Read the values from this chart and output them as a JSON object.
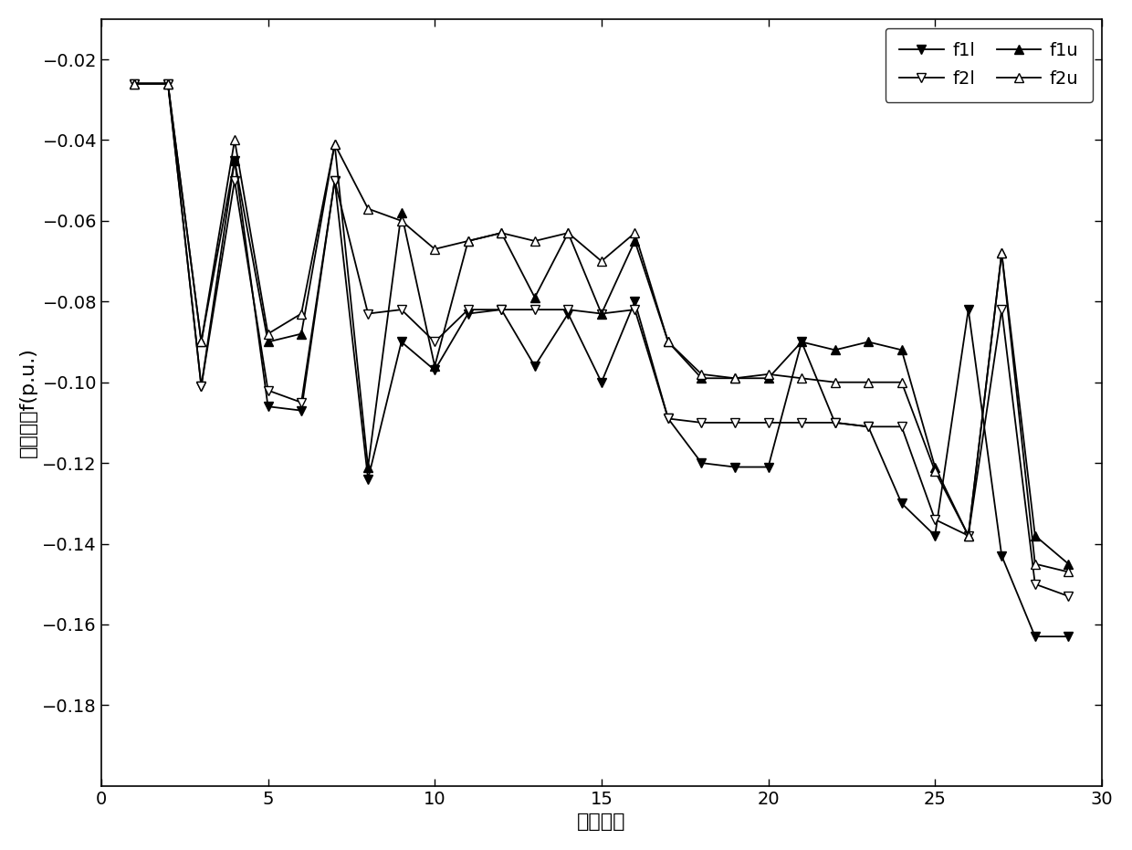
{
  "x": [
    1,
    2,
    3,
    4,
    5,
    6,
    7,
    8,
    9,
    10,
    11,
    12,
    13,
    14,
    15,
    16,
    17,
    18,
    19,
    20,
    21,
    22,
    23,
    24,
    25,
    26,
    27,
    28,
    29
  ],
  "f1l": [
    -0.026,
    -0.026,
    -0.101,
    -0.045,
    -0.106,
    -0.107,
    -0.05,
    -0.124,
    -0.09,
    -0.097,
    -0.083,
    -0.082,
    -0.096,
    -0.083,
    -0.1,
    -0.08,
    -0.109,
    -0.12,
    -0.121,
    -0.121,
    -0.09,
    -0.11,
    -0.111,
    -0.13,
    -0.138,
    -0.082,
    -0.143,
    -0.163,
    -0.163
  ],
  "f2l": [
    -0.026,
    -0.026,
    -0.101,
    -0.05,
    -0.102,
    -0.105,
    -0.05,
    -0.083,
    -0.082,
    -0.09,
    -0.082,
    -0.082,
    -0.082,
    -0.082,
    -0.083,
    -0.082,
    -0.109,
    -0.11,
    -0.11,
    -0.11,
    -0.11,
    -0.11,
    -0.111,
    -0.111,
    -0.134,
    -0.138,
    -0.082,
    -0.15,
    -0.153
  ],
  "f1u": [
    -0.026,
    -0.026,
    -0.09,
    -0.045,
    -0.09,
    -0.088,
    -0.041,
    -0.121,
    -0.058,
    -0.096,
    -0.065,
    -0.063,
    -0.079,
    -0.063,
    -0.083,
    -0.065,
    -0.09,
    -0.099,
    -0.099,
    -0.099,
    -0.09,
    -0.092,
    -0.09,
    -0.092,
    -0.121,
    -0.138,
    -0.068,
    -0.138,
    -0.145
  ],
  "f2u": [
    -0.026,
    -0.026,
    -0.09,
    -0.04,
    -0.088,
    -0.083,
    -0.041,
    -0.057,
    -0.06,
    -0.067,
    -0.065,
    -0.063,
    -0.065,
    -0.063,
    -0.07,
    -0.063,
    -0.09,
    -0.098,
    -0.099,
    -0.098,
    -0.099,
    -0.1,
    -0.1,
    -0.1,
    -0.122,
    -0.138,
    -0.068,
    -0.145,
    -0.147
  ],
  "xlabel": "节点编号",
  "ylabel": "电压虚部f(p.u.)",
  "xlim": [
    0,
    30
  ],
  "ylim": [
    -0.2,
    -0.01
  ],
  "xticks": [
    0,
    5,
    10,
    15,
    20,
    25,
    30
  ],
  "yticks": [
    -0.02,
    -0.04,
    -0.06,
    -0.08,
    -0.1,
    -0.12,
    -0.14,
    -0.16,
    -0.18
  ],
  "legend_labels": [
    "f1l",
    "f2l",
    "f1u",
    "f2u"
  ],
  "line_color": "#000000",
  "background_color": "#ffffff",
  "axis_fontsize": 16,
  "tick_fontsize": 14,
  "legend_fontsize": 14,
  "linewidth": 1.3,
  "markersize": 7
}
